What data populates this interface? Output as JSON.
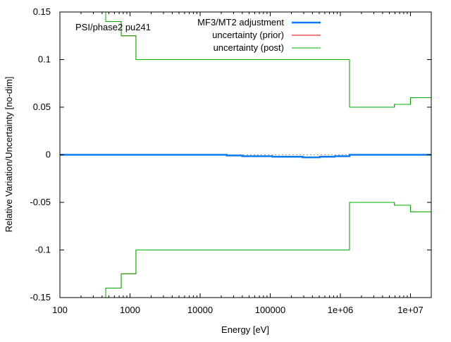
{
  "chart_data": {
    "type": "line",
    "title": "",
    "annotation": "PSI/phase2 pu241",
    "xlabel": "Energy [eV]",
    "ylabel": "Relative Variation/Uncertainty [no-dim]",
    "xscale": "log",
    "xlim": [
      100,
      20000000
    ],
    "ylim": [
      -0.15,
      0.15
    ],
    "xticks": [
      100,
      1000,
      10000,
      100000,
      1000000,
      10000000
    ],
    "xtick_labels": [
      "100",
      "1000",
      "10000",
      "100000",
      "1e+06",
      "1e+07"
    ],
    "yticks": [
      -0.15,
      -0.1,
      -0.05,
      0,
      0.05,
      0.1,
      0.15
    ],
    "ytick_labels": [
      "-0.15",
      "-0.1",
      "-0.05",
      "0",
      "0.05",
      "0.1",
      "0.15"
    ],
    "legend_position": "top-right",
    "series": [
      {
        "name": "MF3/MT2 adjustment",
        "color": "#0a7cf0",
        "style": "step",
        "x": [
          100,
          24000,
          40000,
          107000,
          290000,
          510000,
          830000,
          1350000,
          20000000
        ],
        "y": [
          0,
          -0.0007,
          -0.0015,
          -0.002,
          -0.0027,
          -0.002,
          -0.0015,
          0,
          0
        ]
      },
      {
        "name": "uncertainty (prior)",
        "color": "#e00000",
        "style": "step",
        "x": [
          100,
          450,
          750,
          1215,
          1350000,
          5900000,
          10000000,
          20000000
        ],
        "y": [
          0.2,
          0.14,
          0.125,
          0.1,
          0.05,
          0.053,
          0.06,
          0.06
        ]
      },
      {
        "name": "uncertainty (post)",
        "color": "#00b000",
        "style": "step",
        "x": [
          100,
          450,
          750,
          1215,
          1350000,
          5900000,
          10000000,
          20000000
        ],
        "y": [
          0.2,
          0.14,
          0.125,
          0.1,
          0.05,
          0.053,
          0.06,
          0.06
        ]
      }
    ]
  }
}
